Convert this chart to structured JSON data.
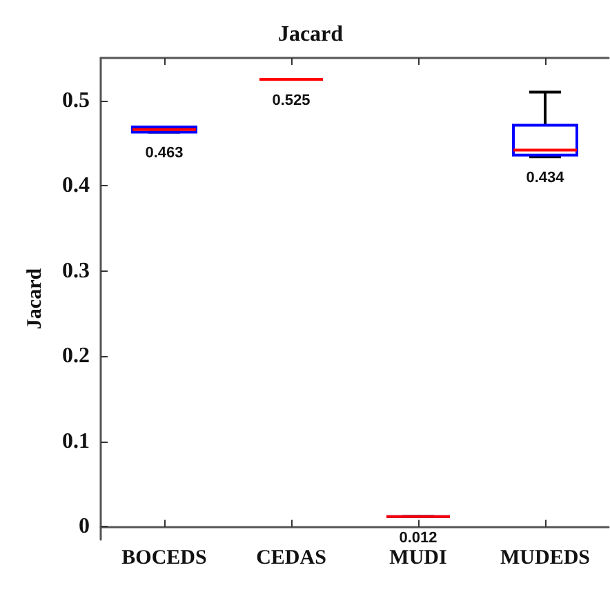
{
  "chart_data": {
    "type": "box",
    "title": "Jacard",
    "ylabel": "Jacard",
    "categories": [
      "BOCEDS",
      "CEDAS",
      "MUDI",
      "MUDEDS"
    ],
    "series": [
      {
        "color": "#0000ff",
        "boxes": [
          {
            "low": 0.463,
            "q1": 0.463,
            "median": 0.466,
            "q3": 0.469,
            "high": 0.469
          },
          {
            "low": 0.525,
            "q1": 0.525,
            "median": 0.525,
            "q3": 0.525,
            "high": 0.525
          },
          {
            "low": 0.012,
            "q1": 0.012,
            "median": 0.012,
            "q3": 0.012,
            "high": 0.012
          },
          {
            "low": 0.434,
            "q1": 0.436,
            "median": 0.442,
            "q3": 0.471,
            "high": 0.51
          }
        ]
      }
    ],
    "ylim": [
      -0.015,
      0.55
    ],
    "yticks": [
      0,
      0.1,
      0.2,
      0.3,
      0.4,
      0.5
    ],
    "grid": false,
    "annotations": [
      {
        "text": "0.463",
        "x": "BOCEDS",
        "y": 0.463
      },
      {
        "text": "0.525",
        "x": "CEDAS",
        "y": 0.525
      },
      {
        "text": "0.012",
        "x": "MUDI",
        "y": 0.012
      },
      {
        "text": "0.434",
        "x": "MUDEDS",
        "y": 0.434
      }
    ]
  }
}
